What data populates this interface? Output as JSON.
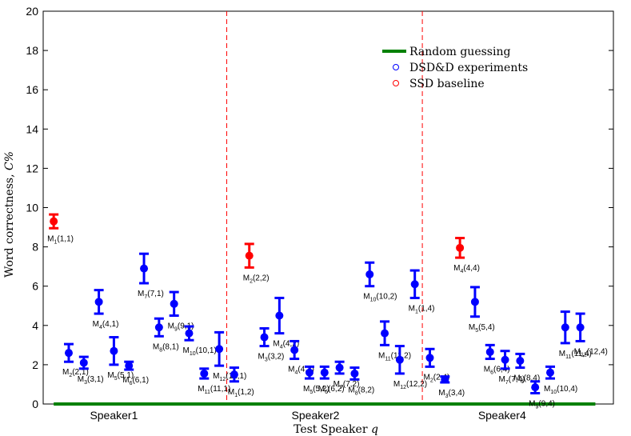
{
  "chart_data": {
    "type": "scatter",
    "xlabel": "Test Speaker ",
    "xlabel_var": "q",
    "ylabel": "Word correctness, ",
    "ylabel_var": "C%",
    "ylim": [
      0,
      20
    ],
    "yticks": [
      0,
      2,
      4,
      6,
      8,
      10,
      12,
      14,
      16,
      18,
      20
    ],
    "xlim": [
      0.3,
      38.2
    ],
    "speaker_labels": [
      {
        "label": "Speaker1",
        "x": 5
      },
      {
        "label": "Speaker2",
        "x": 18.4
      },
      {
        "label": "Speaker4",
        "x": 30.8
      }
    ],
    "dividers": [
      12.5,
      25.5
    ],
    "legend": [
      {
        "label": "Random guessing",
        "kind": "line",
        "color": "#008000"
      },
      {
        "label": "DSD&D experiments",
        "kind": "marker",
        "color": "#0000ff"
      },
      {
        "label": "SSD baseline",
        "kind": "marker",
        "color": "#ff0000"
      }
    ],
    "random_guessing": {
      "y": 0,
      "x_range": [
        1,
        37
      ]
    },
    "colors": {
      "dsdd": "#0000ff",
      "ssd": "#ff0000",
      "divider": "#ff0000",
      "random": "#008000"
    },
    "points": [
      {
        "x": 1,
        "y": 9.3,
        "err": 0.35,
        "series": "ssd",
        "model": "1",
        "pair": "(1,1)"
      },
      {
        "x": 2,
        "y": 2.6,
        "err": 0.45,
        "series": "dsdd",
        "model": "2",
        "pair": "(2,1)"
      },
      {
        "x": 3,
        "y": 2.1,
        "err": 0.3,
        "series": "dsdd",
        "model": "3",
        "pair": "(3,1)"
      },
      {
        "x": 4,
        "y": 5.2,
        "err": 0.6,
        "series": "dsdd",
        "model": "4",
        "pair": "(4,1)"
      },
      {
        "x": 5,
        "y": 2.7,
        "err": 0.7,
        "series": "dsdd",
        "model": "5",
        "pair": "(5,1)"
      },
      {
        "x": 6,
        "y": 1.95,
        "err": 0.2,
        "series": "dsdd",
        "model": "6",
        "pair": "(6,1)"
      },
      {
        "x": 7,
        "y": 6.9,
        "err": 0.75,
        "series": "dsdd",
        "model": "7",
        "pair": "(7,1)"
      },
      {
        "x": 8,
        "y": 3.9,
        "err": 0.45,
        "series": "dsdd",
        "model": "8",
        "pair": "(8,1)"
      },
      {
        "x": 9,
        "y": 5.1,
        "err": 0.6,
        "series": "dsdd",
        "model": "9",
        "pair": "(9,1)"
      },
      {
        "x": 10,
        "y": 3.6,
        "err": 0.35,
        "series": "dsdd",
        "model": "10",
        "pair": "(10,1)"
      },
      {
        "x": 11,
        "y": 1.55,
        "err": 0.25,
        "series": "dsdd",
        "model": "11",
        "pair": "(11,1)"
      },
      {
        "x": 12,
        "y": 2.8,
        "err": 0.85,
        "series": "dsdd",
        "model": "12",
        "pair": "(12,1)"
      },
      {
        "x": 13,
        "y": 1.5,
        "err": 0.35,
        "series": "dsdd",
        "model": "1",
        "pair": "(1,2)"
      },
      {
        "x": 14,
        "y": 7.55,
        "err": 0.6,
        "series": "ssd",
        "model": "2",
        "pair": "(2,2)"
      },
      {
        "x": 15,
        "y": 3.4,
        "err": 0.45,
        "series": "dsdd",
        "model": "3",
        "pair": "(3,2)"
      },
      {
        "x": 16,
        "y": 4.5,
        "err": 0.9,
        "series": "dsdd",
        "model": "4",
        "pair": "(4,2)"
      },
      {
        "x": 17,
        "y": 2.75,
        "err": 0.45,
        "series": "dsdd",
        "model": "4",
        "pair": "(4,2)"
      },
      {
        "x": 18,
        "y": 1.6,
        "err": 0.3,
        "series": "dsdd",
        "model": "5",
        "pair": "(5,2)"
      },
      {
        "x": 19,
        "y": 1.6,
        "err": 0.3,
        "series": "dsdd",
        "model": "6",
        "pair": "(6,2)"
      },
      {
        "x": 20,
        "y": 1.85,
        "err": 0.3,
        "series": "dsdd",
        "model": "7",
        "pair": "(7,2)"
      },
      {
        "x": 21,
        "y": 1.55,
        "err": 0.3,
        "series": "dsdd",
        "model": "8",
        "pair": "(8,2)"
      },
      {
        "x": 22,
        "y": 6.6,
        "err": 0.6,
        "series": "dsdd",
        "model": "10",
        "pair": "(10,2)"
      },
      {
        "x": 23,
        "y": 3.6,
        "err": 0.6,
        "series": "dsdd",
        "model": "11",
        "pair": "(11,2)"
      },
      {
        "x": 24,
        "y": 2.25,
        "err": 0.7,
        "series": "dsdd",
        "model": "12",
        "pair": "(12,2)"
      },
      {
        "x": 25,
        "y": 6.1,
        "err": 0.7,
        "series": "dsdd",
        "model": "1",
        "pair": "(1,4)"
      },
      {
        "x": 26,
        "y": 2.35,
        "err": 0.45,
        "series": "dsdd",
        "model": "2",
        "pair": "(2,4)"
      },
      {
        "x": 27,
        "y": 1.25,
        "err": 0.15,
        "series": "dsdd",
        "model": "3",
        "pair": "(3,4)"
      },
      {
        "x": 28,
        "y": 7.95,
        "err": 0.5,
        "series": "ssd",
        "model": "4",
        "pair": "(4,4)"
      },
      {
        "x": 29,
        "y": 5.2,
        "err": 0.75,
        "series": "dsdd",
        "model": "5",
        "pair": "(5,4)"
      },
      {
        "x": 30,
        "y": 2.65,
        "err": 0.35,
        "series": "dsdd",
        "model": "6",
        "pair": "(6,4)"
      },
      {
        "x": 31,
        "y": 2.25,
        "err": 0.45,
        "series": "dsdd",
        "model": "7",
        "pair": "(7,4)"
      },
      {
        "x": 32,
        "y": 2.2,
        "err": 0.35,
        "series": "dsdd",
        "model": "8",
        "pair": "(8,4)"
      },
      {
        "x": 33,
        "y": 0.85,
        "err": 0.3,
        "series": "dsdd",
        "model": "9",
        "pair": "(9,4)"
      },
      {
        "x": 34,
        "y": 1.6,
        "err": 0.3,
        "series": "dsdd",
        "model": "10",
        "pair": "(10,4)"
      },
      {
        "x": 35,
        "y": 3.9,
        "err": 0.8,
        "series": "dsdd",
        "model": "11",
        "pair": "(11,4)"
      },
      {
        "x": 36,
        "y": 3.9,
        "err": 0.7,
        "series": "dsdd",
        "model": "12",
        "pair": "(12,4)"
      }
    ]
  }
}
